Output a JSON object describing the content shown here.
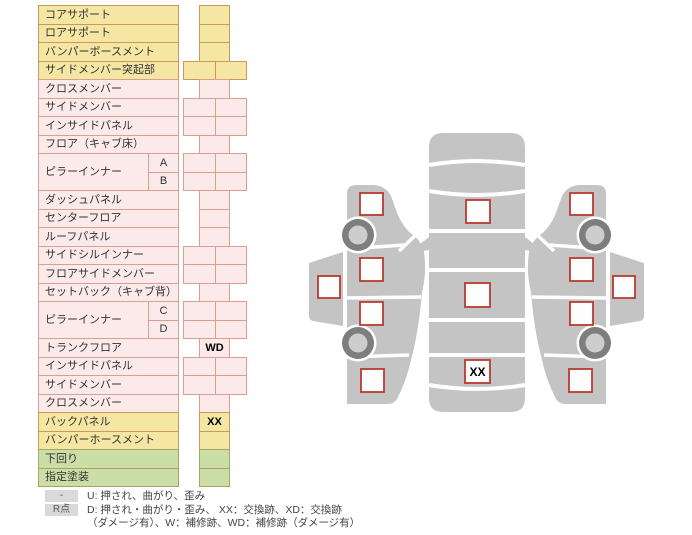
{
  "parts_table": {
    "rows": [
      {
        "label": "コアサポート",
        "color": "yellow",
        "cells": "single",
        "mark": ""
      },
      {
        "label": "ロアサポート",
        "color": "yellow",
        "cells": "single",
        "mark": ""
      },
      {
        "label": "バンパーボースメント",
        "color": "yellow",
        "cells": "single",
        "mark": ""
      },
      {
        "label": "サイドメンバー突起部",
        "color": "yellow",
        "cells": "double",
        "mark": ""
      },
      {
        "label": "クロスメンバー",
        "color": "pink",
        "cells": "single",
        "mark": ""
      },
      {
        "label": "サイドメンバー",
        "color": "pink",
        "cells": "double",
        "mark": ""
      },
      {
        "label": "インサイドパネル",
        "color": "pink",
        "cells": "double",
        "mark": ""
      },
      {
        "label": "フロア（キャブ床）",
        "color": "pink",
        "cells": "single",
        "mark": ""
      },
      {
        "label": "ピラーインナー",
        "sub": "A",
        "span_start": true,
        "color": "pink",
        "cells": "double",
        "mark": ""
      },
      {
        "label": "ピラーインナー",
        "sub": "B",
        "color": "pink",
        "cells": "double",
        "mark": ""
      },
      {
        "label": "ダッシュパネル",
        "color": "pink",
        "cells": "single",
        "mark": ""
      },
      {
        "label": "センターフロア",
        "color": "pink",
        "cells": "single",
        "mark": ""
      },
      {
        "label": "ルーフパネル",
        "color": "pink",
        "cells": "single",
        "mark": ""
      },
      {
        "label": "サイドシルインナー",
        "color": "pink",
        "cells": "double",
        "mark": ""
      },
      {
        "label": "フロアサイドメンバー",
        "color": "pink",
        "cells": "double",
        "mark": ""
      },
      {
        "label": "セットバック（キャブ背）",
        "color": "pink",
        "cells": "single",
        "mark": ""
      },
      {
        "label": "ピラーインナー",
        "sub": "C",
        "span_start": true,
        "color": "pink",
        "cells": "double",
        "mark": ""
      },
      {
        "label": "ピラーインナー",
        "sub": "D",
        "color": "pink",
        "cells": "double",
        "mark": ""
      },
      {
        "label": "トランクフロア",
        "color": "pink",
        "cells": "single",
        "mark": "WD"
      },
      {
        "label": "インサイドパネル",
        "color": "pink",
        "cells": "double",
        "mark": ""
      },
      {
        "label": "サイドメンバー",
        "color": "pink",
        "cells": "double",
        "mark": ""
      },
      {
        "label": "クロスメンバー",
        "color": "pink",
        "cells": "single",
        "mark": ""
      },
      {
        "label": "バックパネル",
        "color": "yellow",
        "cells": "single",
        "mark": "XX"
      },
      {
        "label": "バンパーホースメント",
        "color": "yellow",
        "cells": "single",
        "mark": ""
      },
      {
        "label": "下回り",
        "color": "green",
        "cells": "single",
        "mark": ""
      },
      {
        "label": "指定塗装",
        "color": "green",
        "cells": "single",
        "mark": ""
      }
    ]
  },
  "diagram": {
    "views": [
      {
        "id": "left_side",
        "markers": [
          {
            "id": "fender_front",
            "mark": ""
          },
          {
            "id": "door_outer",
            "mark": ""
          },
          {
            "id": "door_front",
            "mark": ""
          },
          {
            "id": "door_rear",
            "mark": ""
          },
          {
            "id": "fender_rear",
            "mark": ""
          }
        ]
      },
      {
        "id": "top",
        "markers": [
          {
            "id": "hood",
            "mark": ""
          },
          {
            "id": "center",
            "mark": ""
          },
          {
            "id": "trunk",
            "mark": "XX"
          }
        ]
      },
      {
        "id": "right_side",
        "markers": [
          {
            "id": "fender_front",
            "mark": ""
          },
          {
            "id": "door_outer",
            "mark": ""
          },
          {
            "id": "door_front",
            "mark": ""
          },
          {
            "id": "door_rear",
            "mark": ""
          },
          {
            "id": "fender_rear",
            "mark": ""
          }
        ]
      }
    ]
  },
  "legend": {
    "items": [
      {
        "badge": "-",
        "text": "U: 押され、曲がり、歪み",
        "text_cont": ""
      },
      {
        "badge": "R点",
        "text": "D: 押され・曲がり・歪み、 XX：交換跡、XD：交換跡",
        "text_cont": "（ダメージ有）、W：補修跡、WD：補修跡（ダメージ有）"
      }
    ]
  },
  "colors": {
    "yellow_bg": "#f5e7a3",
    "yellow_border": "#c79a5b",
    "pink_bg": "#fbeae9",
    "pink_border": "#d9a090",
    "green_bg": "#cbdea8",
    "green_border": "#a9a45f",
    "car_gray": "#c4c4c4",
    "wheel_ring": "#7e7e7e",
    "wheel_hub": "#cdcdcd",
    "marker_border": "#b83b30",
    "badge_bg": "#d9d9d9"
  }
}
